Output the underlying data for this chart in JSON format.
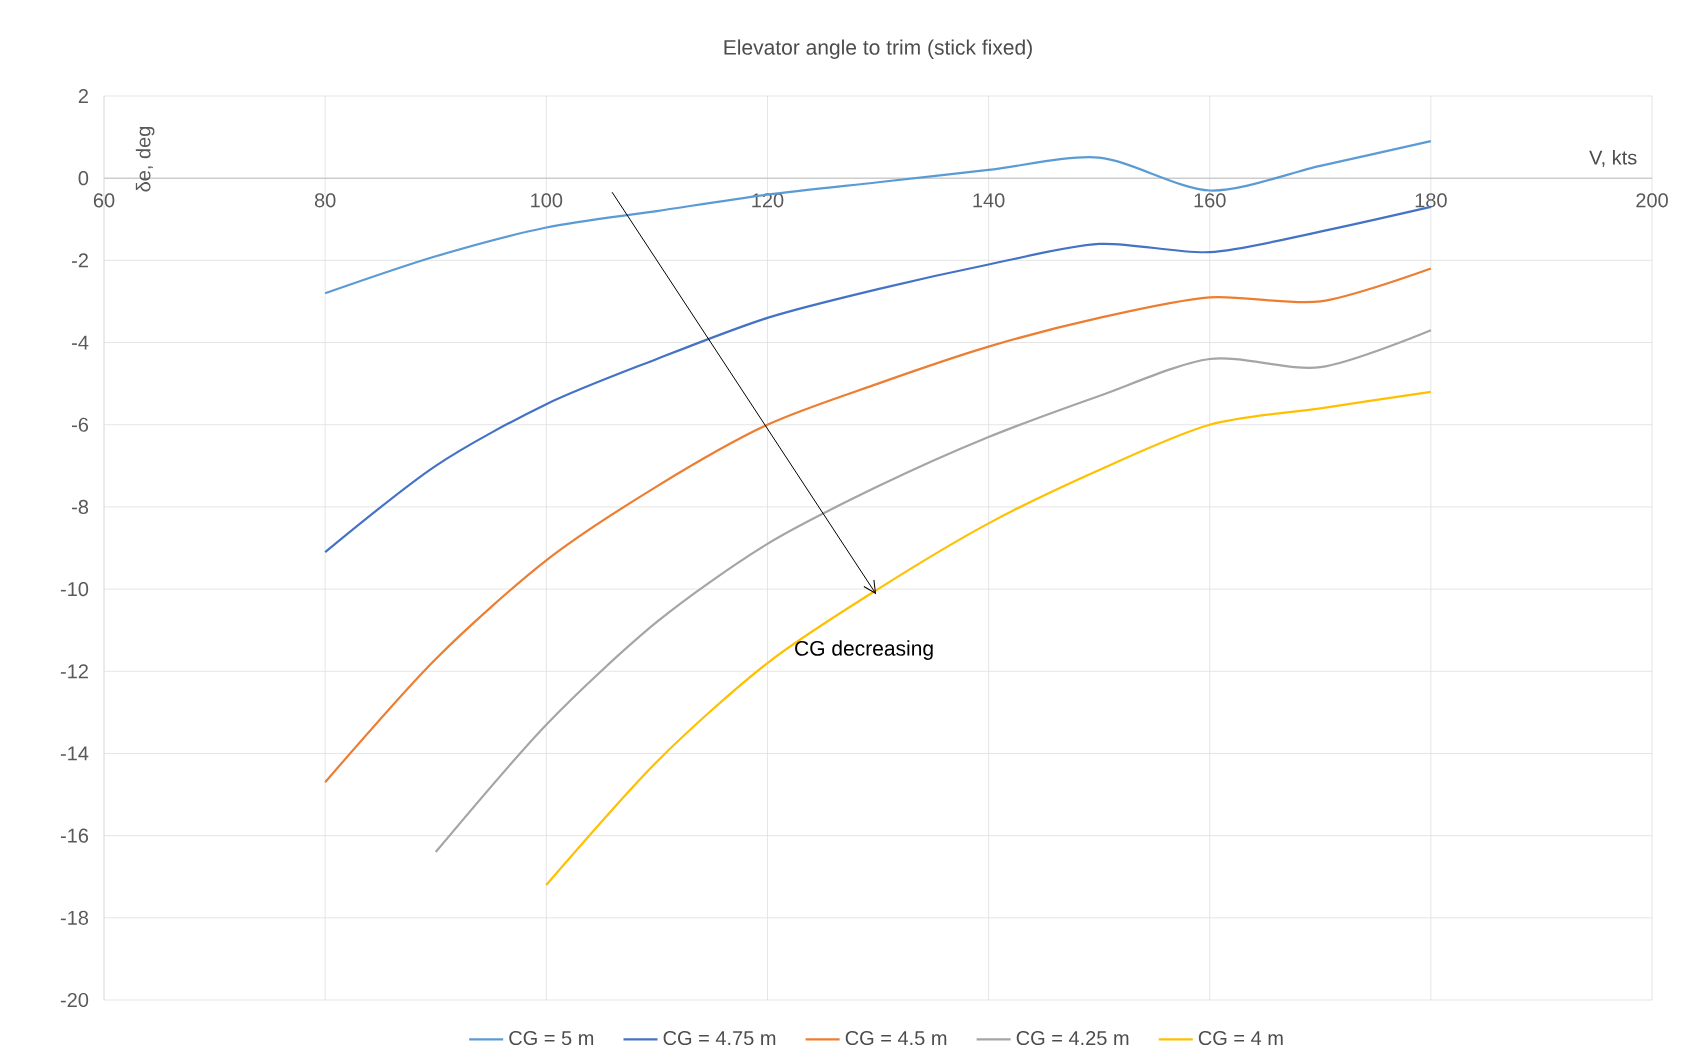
{
  "chart_data": {
    "type": "line",
    "title": "Elevator angle to trim (stick fixed)",
    "xlabel": "V, kts",
    "ylabel": "δe, deg",
    "xlim": [
      60,
      200
    ],
    "xticks": [
      60,
      80,
      100,
      120,
      140,
      160,
      180,
      200
    ],
    "ylim": [
      -20,
      2
    ],
    "yticks": [
      -20,
      -18,
      -16,
      -14,
      -12,
      -10,
      -8,
      -6,
      -4,
      -2,
      0,
      2
    ],
    "grid": true,
    "legend": "bottom",
    "marker": "none",
    "line_style": "solid",
    "annotations": [
      "CG decreasing"
    ],
    "series": [
      {
        "name": "CG = 5 m",
        "color": "#5b9bd5",
        "x": [
          80,
          90,
          100,
          110,
          120,
          130,
          140,
          150,
          160,
          170,
          180
        ],
        "values": [
          -2.8,
          -1.9,
          -1.2,
          -0.8,
          -0.4,
          -0.1,
          0.2,
          0.5,
          -0.3,
          0.3,
          0.9
        ]
      },
      {
        "name": "CG = 4.75 m",
        "color": "#4472c4",
        "x": [
          80,
          90,
          100,
          110,
          120,
          130,
          140,
          150,
          160,
          170,
          180
        ],
        "values": [
          -9.1,
          -7.0,
          -5.5,
          -4.4,
          -3.4,
          -2.7,
          -2.1,
          -1.6,
          -1.8,
          -1.3,
          -0.7
        ]
      },
      {
        "name": "CG = 4.5 m",
        "color": "#ed7d31",
        "x": [
          80,
          90,
          100,
          110,
          120,
          130,
          140,
          150,
          160,
          170,
          180
        ],
        "values": [
          -14.7,
          -11.7,
          -9.3,
          -7.5,
          -6.0,
          -5.0,
          -4.1,
          -3.4,
          -2.9,
          -3.0,
          -2.2
        ]
      },
      {
        "name": "CG = 4.25 m",
        "color": "#a5a5a5",
        "x": [
          90,
          100,
          110,
          120,
          130,
          140,
          150,
          160,
          170,
          180
        ],
        "values": [
          -16.4,
          -13.3,
          -10.8,
          -8.9,
          -7.5,
          -6.3,
          -5.3,
          -4.4,
          -4.6,
          -3.7
        ]
      },
      {
        "name": "CG = 4 m",
        "color": "#ffc000",
        "x": [
          100,
          110,
          120,
          130,
          140,
          150,
          160,
          170,
          180
        ],
        "values": [
          -17.2,
          -14.2,
          -11.8,
          -10.0,
          -8.4,
          -7.1,
          -6.0,
          -5.6,
          -5.2
        ]
      }
    ]
  }
}
